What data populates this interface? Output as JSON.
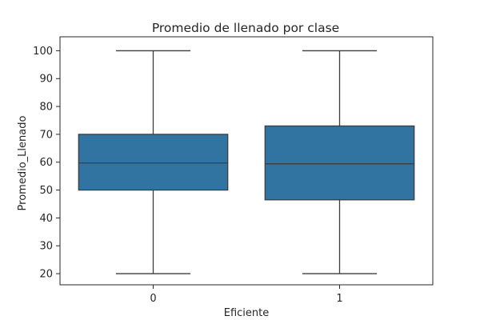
{
  "chart_data": {
    "type": "box",
    "title": "Promedio de llenado por clase",
    "xlabel": "Eficiente",
    "ylabel": "Promedio_Llenado",
    "categories": [
      "0",
      "1"
    ],
    "ylim": [
      16,
      105
    ],
    "yticks": [
      20,
      30,
      40,
      50,
      60,
      70,
      80,
      90,
      100
    ],
    "grid": false,
    "box_color": "#3274a1",
    "line_color": "#3d3d3d",
    "boxes": [
      {
        "category": "0",
        "whisker_low": 20,
        "q1": 50,
        "median": 59.7,
        "q3": 70,
        "whisker_high": 100
      },
      {
        "category": "1",
        "whisker_low": 20,
        "q1": 46.5,
        "median": 59.4,
        "q3": 73,
        "whisker_high": 100
      }
    ]
  }
}
